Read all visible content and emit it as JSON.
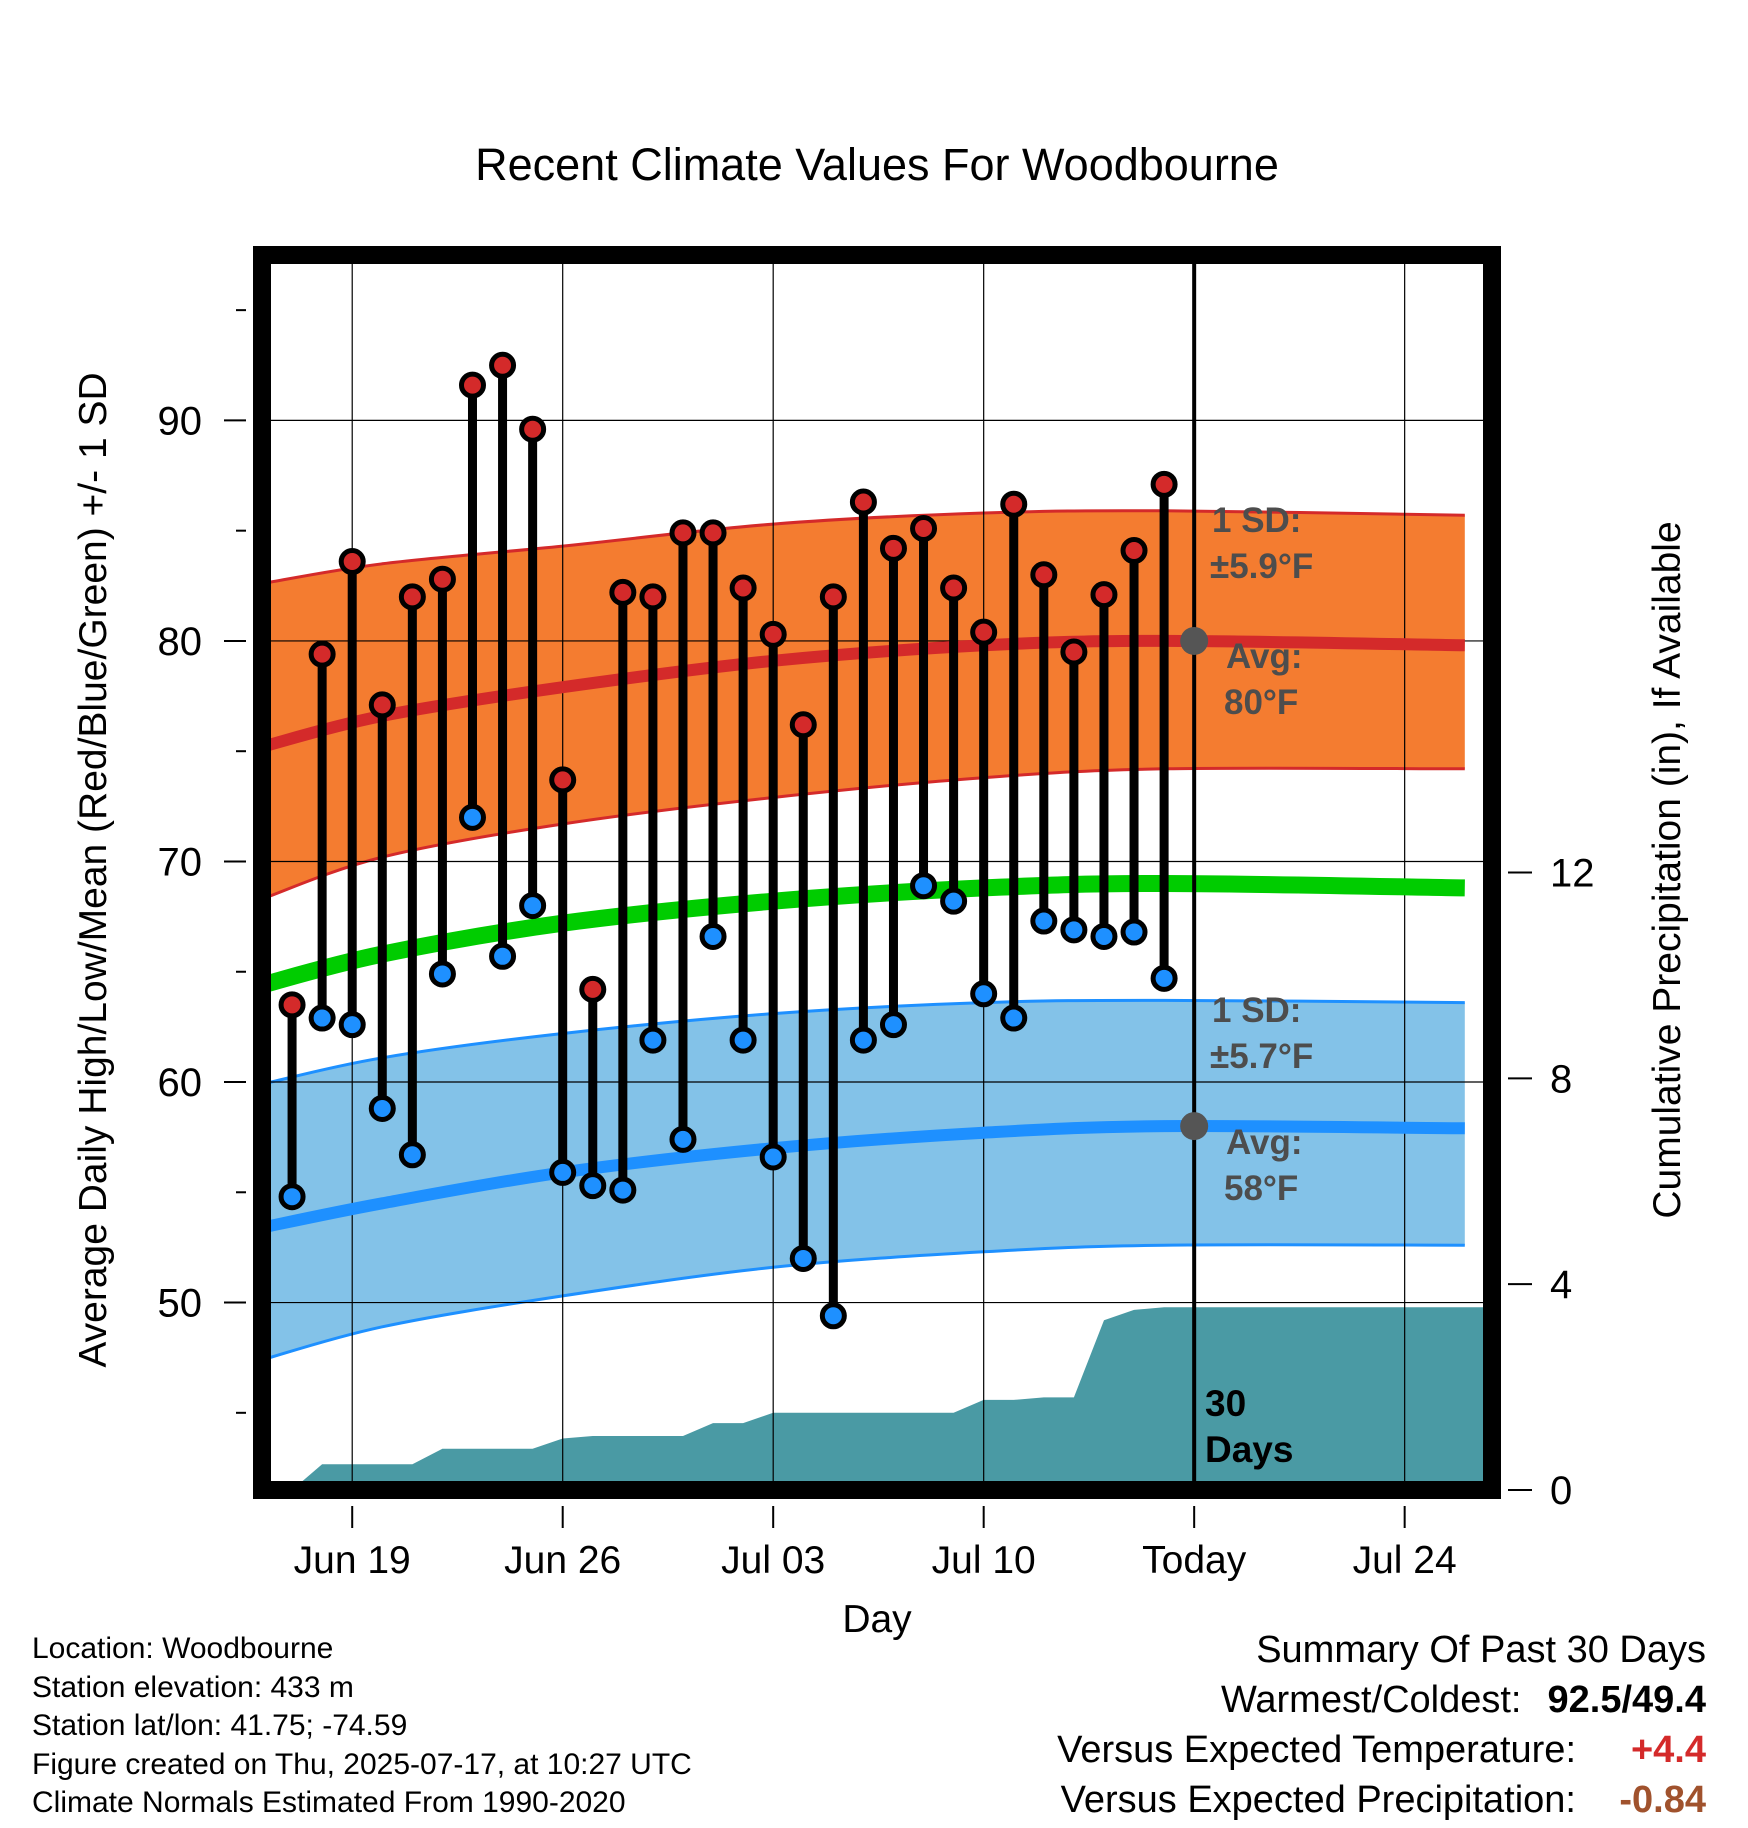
{
  "chart_data": {
    "type": "line",
    "title": "Recent Climate Values For Woodbourne",
    "xlabel": "Day",
    "ylabel": "Average Daily High/Low/Mean (Red/Blue/Green) +/- 1 SD",
    "y2label": "Cumulative Precipitation (in), If Available",
    "xticks": [
      "Jun 19",
      "Jun 26",
      "Jul 03",
      "Jul 10",
      "Today",
      "Jul 24"
    ],
    "x_range": [
      "Jun 16",
      "Jul 26"
    ],
    "ylim": [
      41.5,
      97.5
    ],
    "yticks": [
      50,
      60,
      70,
      80,
      90
    ],
    "y2lim": [
      0,
      24
    ],
    "y2ticks": [
      0,
      4,
      8,
      12
    ],
    "grid": true,
    "dates": [
      "Jun 17",
      "Jun 18",
      "Jun 19",
      "Jun 20",
      "Jun 21",
      "Jun 22",
      "Jun 23",
      "Jun 24",
      "Jun 25",
      "Jun 26",
      "Jun 27",
      "Jun 28",
      "Jun 29",
      "Jun 30",
      "Jul 01",
      "Jul 02",
      "Jul 03",
      "Jul 04",
      "Jul 05",
      "Jul 06",
      "Jul 07",
      "Jul 08",
      "Jul 09",
      "Jul 10",
      "Jul 11",
      "Jul 12",
      "Jul 13",
      "Jul 14",
      "Jul 15",
      "Jul 16"
    ],
    "series": [
      {
        "name": "High",
        "values": [
          63.5,
          79.4,
          83.6,
          77.1,
          82.0,
          82.8,
          91.6,
          92.5,
          89.6,
          73.7,
          64.2,
          82.2,
          82.0,
          84.9,
          84.9,
          82.4,
          80.3,
          76.2,
          82.0,
          86.3,
          84.2,
          85.1,
          82.4,
          80.4,
          86.2,
          83.0,
          79.5,
          82.1,
          84.1,
          87.1
        ]
      },
      {
        "name": "Low",
        "values": [
          54.8,
          62.9,
          62.6,
          58.8,
          56.7,
          64.9,
          72.0,
          65.7,
          68.0,
          55.9,
          55.3,
          55.1,
          61.9,
          57.4,
          66.6,
          61.9,
          56.6,
          52.0,
          49.4,
          61.9,
          62.6,
          68.9,
          68.2,
          64.0,
          62.9,
          67.3,
          66.9,
          66.6,
          66.8,
          64.7
        ]
      }
    ],
    "normals": {
      "x": [
        "Jun 16",
        "Jun 20",
        "Jun 26",
        "Jul 03",
        "Jul 10",
        "Jul 16",
        "Jul 26"
      ],
      "high_avg": [
        75.2,
        76.6,
        77.9,
        79.1,
        79.8,
        80.0,
        79.8
      ],
      "high_upper": [
        82.6,
        83.5,
        84.3,
        85.3,
        85.8,
        85.9,
        85.7
      ],
      "high_lower": [
        68.3,
        70.2,
        71.7,
        72.9,
        73.8,
        74.2,
        74.2
      ],
      "mean_avg": [
        64.4,
        65.8,
        67.2,
        68.2,
        68.8,
        69.0,
        68.8
      ],
      "low_avg": [
        53.4,
        54.5,
        55.9,
        57.0,
        57.7,
        58.0,
        57.9
      ],
      "low_upper": [
        59.9,
        61.1,
        62.2,
        63.1,
        63.6,
        63.7,
        63.6
      ],
      "low_lower": [
        47.4,
        48.9,
        50.3,
        51.6,
        52.3,
        52.6,
        52.6
      ]
    },
    "precip_cumulative": {
      "x": [
        "Jun 17",
        "Jun 18",
        "Jun 19",
        "Jun 20",
        "Jun 21",
        "Jun 22",
        "Jun 23",
        "Jun 24",
        "Jun 25",
        "Jun 26",
        "Jun 27",
        "Jun 28",
        "Jun 29",
        "Jun 30",
        "Jul 01",
        "Jul 02",
        "Jul 03",
        "Jul 04",
        "Jul 05",
        "Jul 06",
        "Jul 07",
        "Jul 08",
        "Jul 09",
        "Jul 10",
        "Jul 11",
        "Jul 12",
        "Jul 13",
        "Jul 14",
        "Jul 15",
        "Jul 16"
      ],
      "values": [
        0.0,
        0.5,
        0.5,
        0.5,
        0.5,
        0.8,
        0.8,
        0.8,
        0.8,
        1.0,
        1.05,
        1.05,
        1.05,
        1.05,
        1.3,
        1.3,
        1.5,
        1.5,
        1.5,
        1.5,
        1.5,
        1.5,
        1.5,
        1.75,
        1.75,
        1.8,
        1.8,
        3.3,
        3.5,
        3.55
      ]
    },
    "annotations": {
      "high_sd": "1 SD:",
      "high_sd_value": "±5.9°F",
      "high_avg_label": "Avg:",
      "high_avg_value": "80°F",
      "low_sd": "1 SD:",
      "low_sd_value": "±5.7°F",
      "low_avg_label": "Avg:",
      "low_avg_value": "58°F",
      "period_number": "30",
      "period_unit": "Days"
    },
    "colors": {
      "high_band": "#f47c30",
      "high_line": "#d42a2a",
      "low_band": "#83c2e8",
      "low_line": "#1e90ff",
      "mean_line": "#00cc00",
      "precip": "#4a9aa4",
      "high_marker": "#d42a2a",
      "low_marker": "#1e90ff"
    }
  },
  "info": {
    "location": "Location: Woodbourne",
    "elevation": "Station elevation: 433 m",
    "latlon": "Station lat/lon: 41.75; -74.59",
    "created": "Figure created on Thu, 2025-07-17, at 10:27 UTC",
    "normals": "Climate Normals Estimated From 1990-2020"
  },
  "summary": {
    "title": "Summary Of Past 30 Days",
    "warm_cold_label": "Warmest/Coldest:",
    "warm_value": "92.5",
    "separator": "/",
    "cold_value": "49.4",
    "temp_label": "Versus Expected Temperature:",
    "temp_value": "+4.4",
    "precip_label": "Versus Expected Precipitation:",
    "precip_value": "-0.84"
  }
}
